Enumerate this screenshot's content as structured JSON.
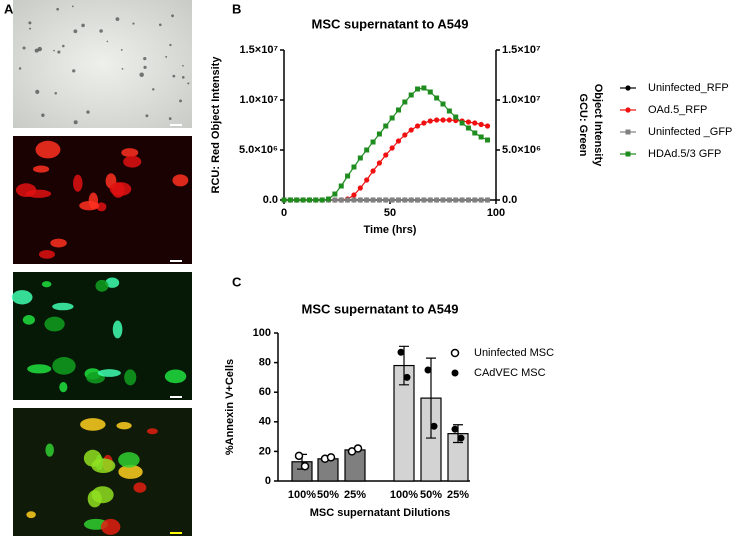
{
  "figure": {
    "panel_a_label": "A"
  },
  "chart_data": [
    {
      "type": "line",
      "panel_label": "B",
      "title": "MSC supernatant to A549",
      "xlabel": "Time (hrs)",
      "ylabel": "RCU:  Red Object Intensity",
      "y2label": [
        "GCU:  Green",
        "Object Intensity"
      ],
      "x": [
        0,
        3,
        6,
        9,
        12,
        15,
        18,
        21,
        24,
        27,
        30,
        33,
        36,
        39,
        42,
        45,
        48,
        51,
        54,
        57,
        60,
        63,
        66,
        69,
        72,
        75,
        78,
        81,
        84,
        87,
        90,
        93,
        96
      ],
      "xlim": [
        0,
        100
      ],
      "xticks": [
        0,
        50,
        100
      ],
      "ylim": [
        0,
        15000000
      ],
      "yticks": [
        {
          "value": 0,
          "label": "0.0"
        },
        {
          "value": 5000000,
          "label": "5.0×10⁶"
        },
        {
          "value": 10000000,
          "label": "1.0×10⁷"
        },
        {
          "value": 15000000,
          "label": "1.5×10⁷"
        }
      ],
      "y2lim": [
        0,
        15000000
      ],
      "y2ticks": [
        {
          "value": 0,
          "label": "0.0"
        },
        {
          "value": 5000000,
          "label": "5.0×10⁶"
        },
        {
          "value": 10000000,
          "label": "1.0×10⁷"
        },
        {
          "value": 15000000,
          "label": "1.5×10⁷"
        }
      ],
      "legend": "right",
      "series": [
        {
          "name": "Uninfected_RFP",
          "color": "#000000",
          "marker": "circle",
          "values": [
            0,
            0,
            0,
            0,
            0,
            0,
            0,
            0,
            0,
            0,
            0,
            0,
            0,
            0,
            0,
            0,
            0,
            0,
            0,
            0,
            0,
            0,
            0,
            0,
            0,
            0,
            0,
            0,
            0,
            0,
            0,
            0,
            0
          ]
        },
        {
          "name": "OAd.5_RFP",
          "color": "#f01010",
          "marker": "circle",
          "values": [
            0,
            0,
            0,
            0,
            0,
            0,
            0,
            0,
            0,
            0,
            100000,
            500000,
            1200000,
            2000000,
            2900000,
            3700000,
            4500000,
            5200000,
            5900000,
            6500000,
            7000000,
            7400000,
            7700000,
            7900000,
            8000000,
            8000000,
            8000000,
            7950000,
            7900000,
            7800000,
            7700000,
            7550000,
            7400000
          ]
        },
        {
          "name": "Uninfected _GFP",
          "color": "#808080",
          "marker": "square",
          "axis": "y2",
          "values": [
            0,
            0,
            0,
            0,
            0,
            0,
            0,
            0,
            0,
            0,
            0,
            0,
            0,
            0,
            0,
            0,
            0,
            0,
            0,
            0,
            0,
            0,
            0,
            0,
            0,
            0,
            0,
            0,
            0,
            0,
            0,
            0,
            0
          ]
        },
        {
          "name": "HDAd.5/3 GFP",
          "color": "#1e8c1e",
          "marker": "square",
          "axis": "y2",
          "values": [
            0,
            0,
            0,
            0,
            0,
            0,
            0,
            100000,
            600000,
            1400000,
            2400000,
            3300000,
            4200000,
            5000000,
            5800000,
            6600000,
            7400000,
            8200000,
            9000000,
            9800000,
            10500000,
            11100000,
            11200000,
            10800000,
            10200000,
            9600000,
            8900000,
            8300000,
            7700000,
            7200000,
            6700000,
            6300000,
            6000000
          ]
        }
      ]
    },
    {
      "type": "bar",
      "panel_label": "C",
      "title": "MSC supernatant to A549",
      "xlabel": "MSC supernatant Dilutions",
      "ylabel": "%Annexin V+Cells",
      "categories": [
        "100%",
        "50%",
        "25%",
        "100%",
        "50%",
        "25%"
      ],
      "ylim": [
        0,
        100
      ],
      "yticks": [
        0,
        20,
        40,
        60,
        80,
        100
      ],
      "legend": "right",
      "series": [
        {
          "name": "Uninfected MSC",
          "color": "#7f7f7f",
          "marker": "open-circle",
          "values": [
            13,
            15,
            21,
            null,
            null,
            null
          ],
          "errors": [
            5,
            1,
            1,
            null,
            null,
            null
          ],
          "points": [
            [
              17,
              10
            ],
            [
              15,
              16
            ],
            [
              20,
              22
            ],
            null,
            null,
            null
          ]
        },
        {
          "name": "CAdVEC MSC",
          "color": "#d3d3d3",
          "marker": "filled-circle",
          "values": [
            null,
            null,
            null,
            78,
            56,
            32
          ],
          "errors": [
            null,
            null,
            null,
            13,
            27,
            6
          ],
          "points": [
            null,
            null,
            null,
            [
              87,
              70
            ],
            [
              75,
              37
            ],
            [
              35,
              29
            ]
          ]
        }
      ]
    }
  ]
}
